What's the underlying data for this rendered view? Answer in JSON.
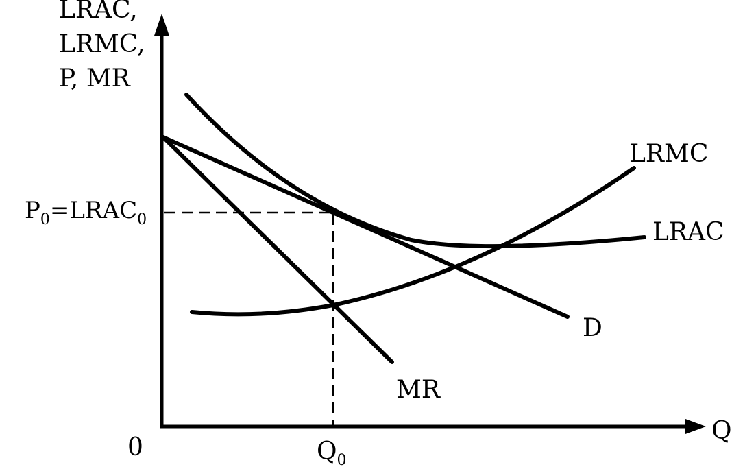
{
  "diagram": {
    "y_axis_label_lines": [
      "LRAC,",
      "LRMC,",
      "P,  MR"
    ],
    "x_axis_label": "Q",
    "origin_label": "0",
    "price_label": {
      "main": "P",
      "sub1": "0",
      "mid": "=LRAC",
      "sub2": "0"
    },
    "quantity_label": {
      "main": "Q",
      "sub": "0"
    },
    "curves": {
      "lrmc": "LRMC",
      "lrac": "LRAC",
      "demand": "D",
      "marginal_revenue": "MR"
    },
    "colors": {
      "ink": "#000000",
      "background": "#ffffff"
    }
  }
}
